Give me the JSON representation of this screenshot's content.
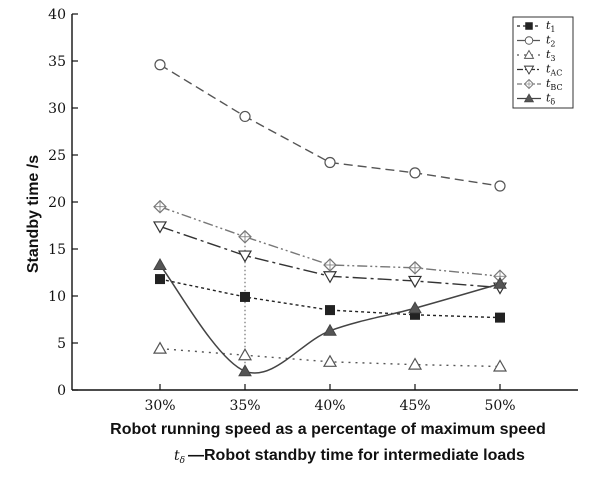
{
  "chart_data": {
    "type": "line",
    "x": [
      "30%",
      "35%",
      "40%",
      "45%",
      "50%"
    ],
    "xlabel": "Robot running speed as a percentage of maximum speed",
    "ylabel": "Standby time /s",
    "ylim": [
      0,
      40
    ],
    "yticks": [
      0,
      5,
      10,
      15,
      20,
      25,
      30,
      35,
      40
    ],
    "note": {
      "symbol": "t",
      "symbol_sub": "δ",
      "text": "—Robot standby time for intermediate loads"
    },
    "legend_position": "top-right",
    "grid": false,
    "series": [
      {
        "name": "t",
        "sub": "1",
        "marker": "filled-square",
        "dash": "3,3",
        "color": "#222222",
        "values": [
          11.8,
          9.9,
          8.5,
          8.0,
          7.7
        ]
      },
      {
        "name": "t",
        "sub": "2",
        "marker": "open-circle",
        "dash": "9,5",
        "color": "#555555",
        "values": [
          34.6,
          29.1,
          24.2,
          23.1,
          21.7
        ]
      },
      {
        "name": "t",
        "sub": "3",
        "marker": "open-triangle-up",
        "dash": "2,5",
        "color": "#555555",
        "values": [
          4.4,
          3.7,
          3.0,
          2.7,
          2.5
        ]
      },
      {
        "name": "t",
        "sub": "AC",
        "marker": "open-triangle-down",
        "dash": "14,4,3,4",
        "color": "#333333",
        "values": [
          17.4,
          14.3,
          12.1,
          11.6,
          10.9
        ]
      },
      {
        "name": "t",
        "sub": "BC",
        "marker": "open-diamond",
        "dash": "10,3,2,3,2,3",
        "color": "#777777",
        "values": [
          19.5,
          16.3,
          13.3,
          13.0,
          12.1
        ]
      },
      {
        "name": "t",
        "sub": "δ",
        "marker": "filled-triangle-up",
        "dash": "",
        "color": "#444444",
        "smooth": true,
        "values": [
          13.3,
          2.0,
          6.3,
          8.7,
          11.3
        ]
      }
    ],
    "annotations": [
      {
        "type": "vertical-dotted-line",
        "x": "35%",
        "y_from": 2.0,
        "y_to": 16.3
      }
    ]
  }
}
